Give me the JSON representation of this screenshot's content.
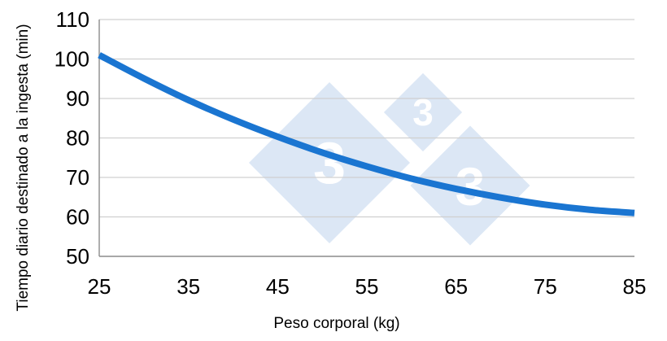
{
  "watermark": {
    "glyph": "3",
    "color": "#dce7f5"
  },
  "chart_data": {
    "type": "line",
    "xlabel": "Peso corporal (kg)",
    "ylabel": "Tiempo diario destinado a la ingesta (min)",
    "xlim": [
      25,
      85
    ],
    "ylim": [
      50,
      110
    ],
    "x_ticks": [
      25,
      35,
      45,
      55,
      65,
      75,
      85
    ],
    "y_ticks": [
      50,
      60,
      70,
      80,
      90,
      100,
      110
    ],
    "grid": true,
    "legend": "none",
    "series": [
      {
        "color": "#1a75d1",
        "x": [
          25,
          30,
          35,
          40,
          45,
          50,
          55,
          60,
          65,
          70,
          75,
          80,
          85
        ],
        "y": [
          101,
          95.1,
          89.6,
          84.7,
          80.3,
          76.3,
          72.8,
          69.7,
          67.1,
          64.9,
          63.1,
          61.8,
          61
        ]
      }
    ]
  }
}
